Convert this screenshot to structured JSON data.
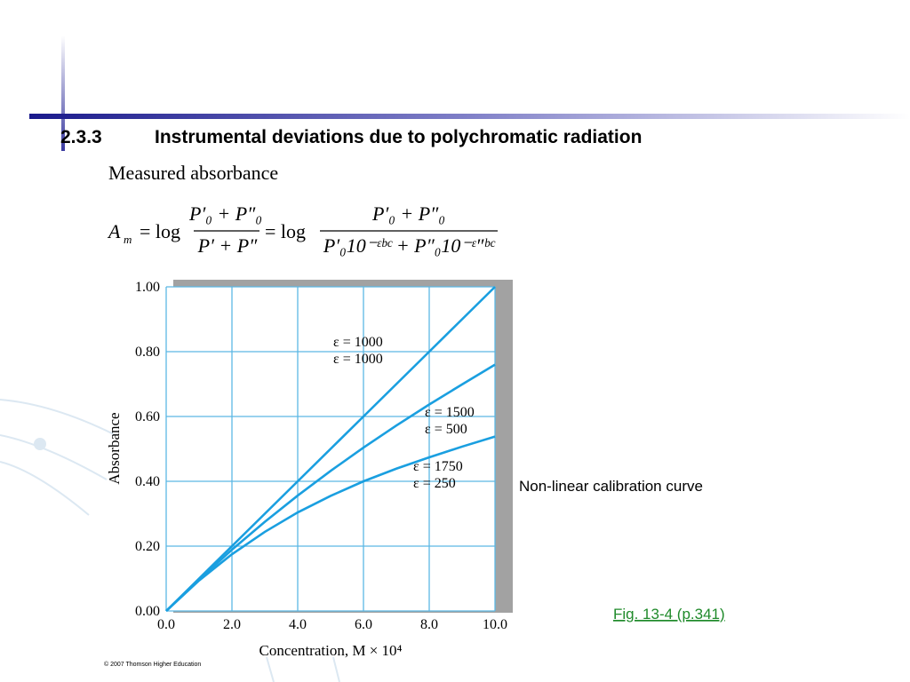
{
  "heading": {
    "number": "2.3.3",
    "title": "Instrumental deviations due to polychromatic radiation"
  },
  "subheading": "Measured absorbance",
  "formula": {
    "lhs": "A",
    "lhs_sub": "m",
    "eq1": "= log",
    "num1": "P′₀ + P″₀",
    "den1": "P′ + P″",
    "eq2": "= log",
    "num2": "P′₀ + P″₀",
    "den2": "P′₀10⁻ᵋᵇᶜ + P″₀10⁻ᵋ″ᵇᶜ"
  },
  "caption": "Non-linear calibration curve",
  "figure_ref": "Fig. 13-4 (p.341)",
  "copyright": "© 2007 Thomson Higher Education",
  "chart_data": {
    "type": "line",
    "xlabel": "Concentration, M × 10⁴",
    "ylabel": "Absorbance",
    "x": [
      0,
      1,
      2,
      3,
      4,
      5,
      6,
      7,
      8,
      9,
      10
    ],
    "series": [
      {
        "color": "#1a9fe0",
        "values": [
          0,
          0.1,
          0.2,
          0.3,
          0.4,
          0.5,
          0.6,
          0.7,
          0.8,
          0.9,
          1.0
        ]
      },
      {
        "color": "#1a9fe0",
        "values": [
          0,
          0.097,
          0.189,
          0.275,
          0.356,
          0.432,
          0.504,
          0.572,
          0.637,
          0.699,
          0.76
        ]
      },
      {
        "color": "#1a9fe0",
        "values": [
          0,
          0.094,
          0.175,
          0.244,
          0.304,
          0.355,
          0.4,
          0.439,
          0.474,
          0.507,
          0.538
        ]
      }
    ],
    "annotations": [
      [
        "ε = 1000",
        "ε = 1000"
      ],
      [
        "ε = 1500",
        "ε = 500"
      ],
      [
        "ε = 1750",
        "ε = 250"
      ]
    ],
    "xlim": [
      0,
      10
    ],
    "xticks": [
      {
        "value": 0,
        "label": "0.0"
      },
      {
        "value": 2,
        "label": "2.0"
      },
      {
        "value": 4,
        "label": "4.0"
      },
      {
        "value": 6,
        "label": "6.0"
      },
      {
        "value": 8,
        "label": "8.0"
      },
      {
        "value": 10,
        "label": "10.0"
      }
    ],
    "ylim": [
      0,
      1
    ],
    "yticks": [
      {
        "value": 0,
        "label": "0.00"
      },
      {
        "value": 0.2,
        "label": "0.20"
      },
      {
        "value": 0.4,
        "label": "0.40"
      },
      {
        "value": 0.6,
        "label": "0.60"
      },
      {
        "value": 0.8,
        "label": "0.80"
      },
      {
        "value": 1,
        "label": "1.00"
      }
    ],
    "grid": true,
    "grid_color": "#5cb8e4"
  }
}
